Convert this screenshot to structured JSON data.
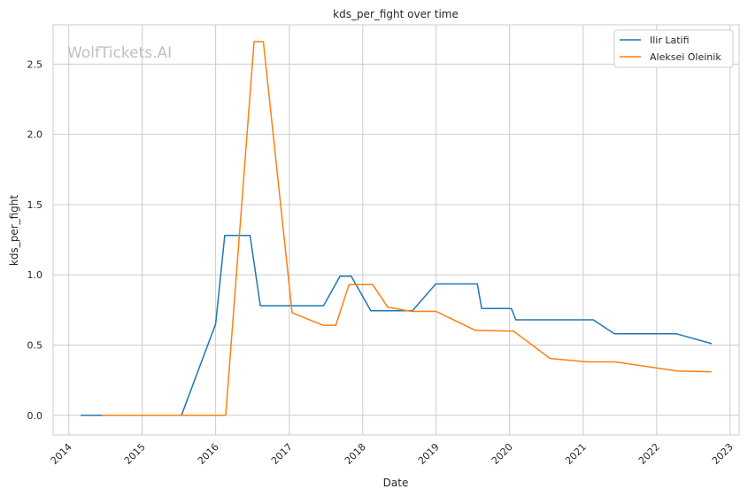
{
  "chart_data": {
    "type": "line",
    "title": "kds_per_fight over time",
    "xlabel": "Date",
    "ylabel": "kds_per_fight",
    "watermark": "WolfTickets.AI",
    "xlim": [
      "2013-10-15",
      "2023-02-15"
    ],
    "ylim": [
      -0.14,
      2.78
    ],
    "grid": true,
    "legend_position": "top-right",
    "x_ticks": [
      "2014",
      "2015",
      "2016",
      "2017",
      "2018",
      "2019",
      "2020",
      "2021",
      "2022",
      "2023"
    ],
    "y_ticks": [
      "0.0",
      "0.5",
      "1.0",
      "1.5",
      "2.0",
      "2.5"
    ],
    "series": [
      {
        "name": "Ilir Latifi",
        "color": "#1f77b4",
        "points": [
          [
            "2014-03-01",
            0.0
          ],
          [
            "2015-07-15",
            0.0
          ],
          [
            "2016-01-01",
            0.65
          ],
          [
            "2016-02-15",
            1.28
          ],
          [
            "2016-06-20",
            1.28
          ],
          [
            "2016-08-10",
            0.78
          ],
          [
            "2017-06-20",
            0.78
          ],
          [
            "2017-09-10",
            0.99
          ],
          [
            "2017-11-05",
            0.99
          ],
          [
            "2018-02-10",
            0.745
          ],
          [
            "2018-09-05",
            0.745
          ],
          [
            "2018-12-30",
            0.935
          ],
          [
            "2019-07-25",
            0.935
          ],
          [
            "2019-08-15",
            0.76
          ],
          [
            "2020-01-10",
            0.76
          ],
          [
            "2020-02-01",
            0.68
          ],
          [
            "2021-02-20",
            0.68
          ],
          [
            "2021-06-05",
            0.58
          ],
          [
            "2022-04-10",
            0.58
          ],
          [
            "2022-10-01",
            0.51
          ]
        ]
      },
      {
        "name": "Aleksei Oleinik",
        "color": "#ff7f0e",
        "points": [
          [
            "2014-06-15",
            0.0
          ],
          [
            "2016-02-20",
            0.0
          ],
          [
            "2016-07-10",
            2.66
          ],
          [
            "2016-08-25",
            2.66
          ],
          [
            "2017-01-15",
            0.73
          ],
          [
            "2017-06-20",
            0.64
          ],
          [
            "2017-08-20",
            0.64
          ],
          [
            "2017-10-25",
            0.93
          ],
          [
            "2018-02-20",
            0.93
          ],
          [
            "2018-05-05",
            0.77
          ],
          [
            "2018-09-01",
            0.74
          ],
          [
            "2019-01-01",
            0.74
          ],
          [
            "2019-07-15",
            0.605
          ],
          [
            "2020-01-20",
            0.6
          ],
          [
            "2020-07-20",
            0.405
          ],
          [
            "2021-01-20",
            0.38
          ],
          [
            "2021-06-10",
            0.38
          ],
          [
            "2022-04-15",
            0.315
          ],
          [
            "2022-10-01",
            0.31
          ]
        ]
      }
    ]
  }
}
